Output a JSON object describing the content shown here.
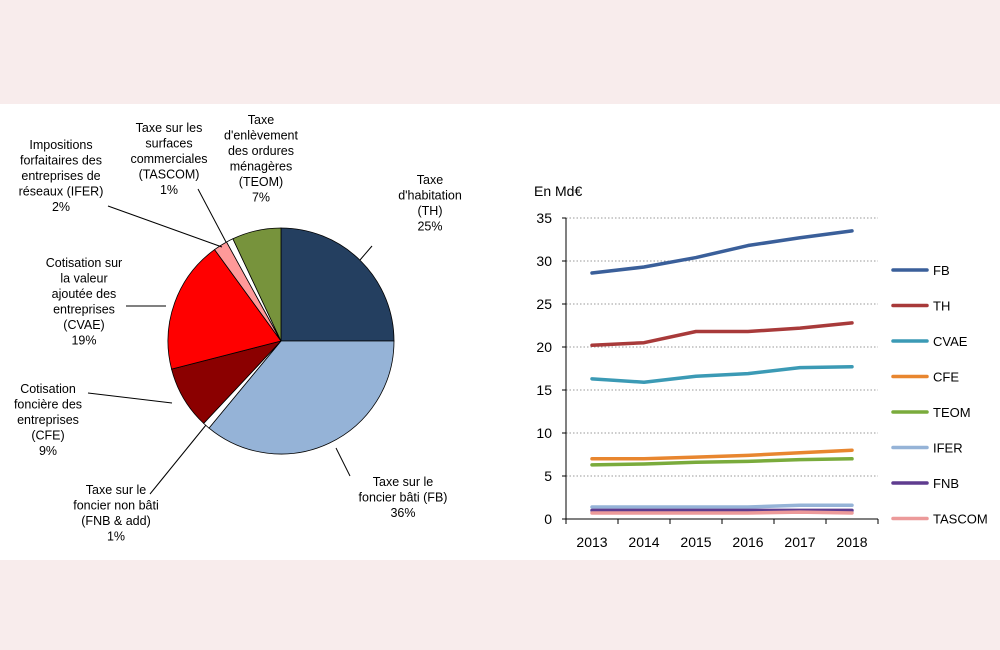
{
  "chart_data": [
    {
      "type": "pie",
      "slices": [
        {
          "key": "TH",
          "lines": [
            "Taxe",
            "d'habitation",
            "(TH)",
            "25%"
          ],
          "value": 25,
          "color": "#243f60"
        },
        {
          "key": "FB",
          "lines": [
            "Taxe sur le",
            "foncier bâti (FB)",
            "36%"
          ],
          "value": 36,
          "color": "#95b3d7"
        },
        {
          "key": "FNB",
          "lines": [
            "Taxe sur le",
            "foncier non bâti",
            "(FNB & add)",
            "1%"
          ],
          "value": 1,
          "color": "#ffffff"
        },
        {
          "key": "CFE",
          "lines": [
            "Cotisation",
            "foncière des",
            "entreprises",
            "(CFE)",
            "9%"
          ],
          "value": 9,
          "color": "#8b0000"
        },
        {
          "key": "CVAE",
          "lines": [
            "Cotisation sur",
            "la valeur",
            "ajoutée des",
            "entreprises",
            "(CVAE)",
            "19%"
          ],
          "value": 19,
          "color": "#ff0000"
        },
        {
          "key": "IFER",
          "lines": [
            "Impositions",
            "forfaitaires des",
            "entreprises de",
            "réseaux (IFER)",
            "2%"
          ],
          "value": 2,
          "color": "#ff9999"
        },
        {
          "key": "TASCOM",
          "lines": [
            "Taxe sur les",
            "surfaces",
            "commerciales",
            "(TASCOM)",
            "1%"
          ],
          "value": 1,
          "color": "#ffffff"
        },
        {
          "key": "TEOM",
          "lines": [
            "Taxe",
            "d'enlèvement",
            "des ordures",
            "ménagères",
            "(TEOM)",
            "7%"
          ],
          "value": 7,
          "color": "#77933c"
        }
      ]
    },
    {
      "type": "line",
      "ylabel": "En Md€",
      "x": [
        "2013",
        "2014",
        "2015",
        "2016",
        "2017",
        "2018"
      ],
      "ylim": [
        0,
        35
      ],
      "yticks": [
        "0",
        "5",
        "10",
        "15",
        "20",
        "25",
        "30",
        "35"
      ],
      "grid": true,
      "legend_position": "right",
      "series": [
        {
          "name": "FB",
          "values": [
            28.6,
            29.3,
            30.4,
            31.8,
            32.7,
            33.5
          ],
          "color": "#3a5f9a"
        },
        {
          "name": "TH",
          "values": [
            20.2,
            20.5,
            21.8,
            21.8,
            22.2,
            22.8
          ],
          "color": "#a83a3a"
        },
        {
          "name": "CVAE",
          "values": [
            16.3,
            15.9,
            16.6,
            16.9,
            17.6,
            17.7
          ],
          "color": "#3b9ab5"
        },
        {
          "name": "CFE",
          "values": [
            7.0,
            7.0,
            7.2,
            7.4,
            7.7,
            8.0
          ],
          "color": "#e8862f"
        },
        {
          "name": "TEOM",
          "values": [
            6.3,
            6.4,
            6.6,
            6.7,
            6.9,
            7.0
          ],
          "color": "#7aab3c"
        },
        {
          "name": "IFER",
          "values": [
            1.4,
            1.4,
            1.4,
            1.4,
            1.6,
            1.6
          ],
          "color": "#95b3d7"
        },
        {
          "name": "FNB",
          "values": [
            1.0,
            1.0,
            1.0,
            1.0,
            1.0,
            1.0
          ],
          "color": "#5f3c8f"
        },
        {
          "name": "TASCOM",
          "values": [
            0.7,
            0.7,
            0.7,
            0.7,
            0.8,
            0.7
          ],
          "color": "#ec9a9a"
        }
      ]
    }
  ]
}
